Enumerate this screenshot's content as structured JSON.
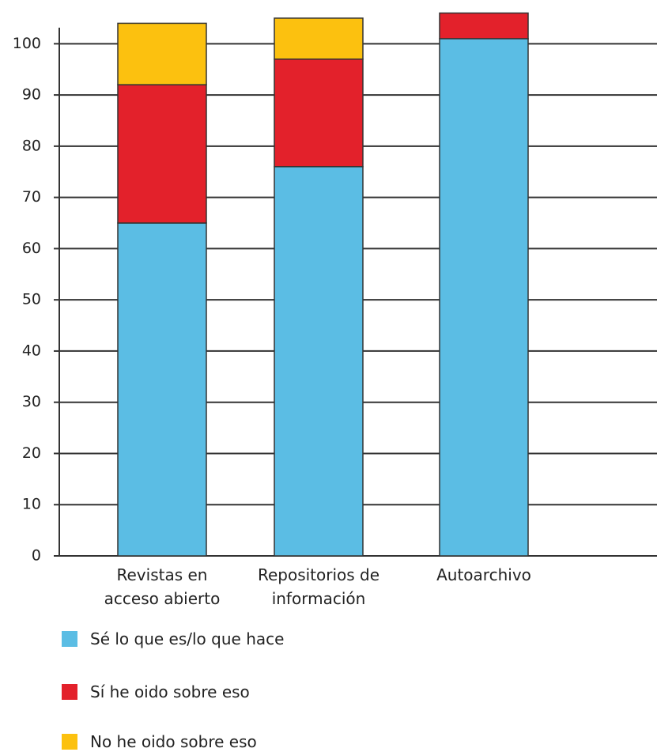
{
  "chart_data": {
    "type": "stacked-bar",
    "categories": [
      "Revistas en acceso abierto",
      "Repositorios de información",
      "Autoarchivo"
    ],
    "series": [
      {
        "name": "Sé lo que es/lo que hace",
        "color": "#5bbde4",
        "values": [
          65,
          76,
          101
        ]
      },
      {
        "name": "Sí he oido sobre eso",
        "color": "#e3212b",
        "values": [
          27,
          21,
          5
        ]
      },
      {
        "name": "No he oido sobre eso",
        "color": "#fcc10f",
        "values": [
          12,
          8,
          0
        ]
      }
    ],
    "ylim": [
      0,
      107
    ],
    "yticks": [
      0,
      10,
      20,
      30,
      40,
      50,
      60,
      70,
      80,
      90,
      100
    ],
    "grid": true
  }
}
